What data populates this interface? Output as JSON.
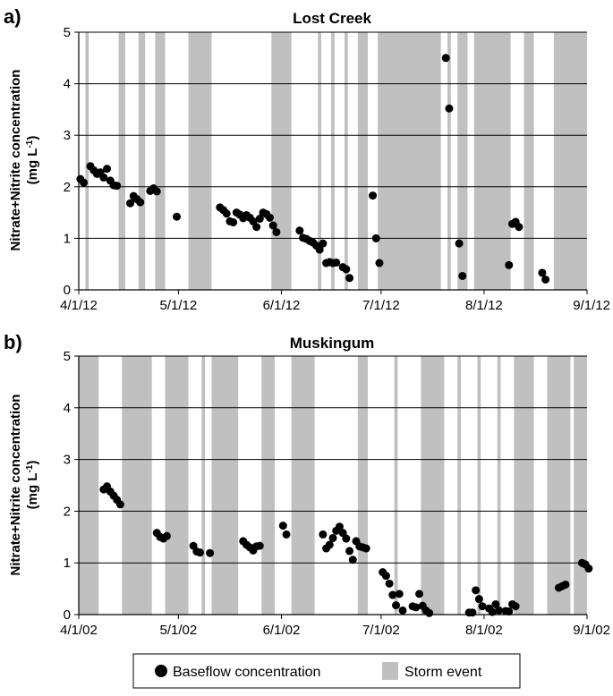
{
  "chart_data": [
    {
      "type": "scatter",
      "panel_label": "a)",
      "title": "Lost Creek",
      "ylabel_main": "Nitrate+Nitrite concentration",
      "ylabel_unit": "(mg L",
      "ylabel_exp": "-1",
      "ylabel_close": ")",
      "ylim": [
        0,
        5
      ],
      "yticks": [
        "0",
        "1",
        "2",
        "3",
        "4",
        "5"
      ],
      "xlim": [
        "2012-04-01",
        "2012-09-01"
      ],
      "xticks": [
        {
          "date": "2012-04-01",
          "label": "4/1/12"
        },
        {
          "date": "2012-05-01",
          "label": "5/1/12"
        },
        {
          "date": "2012-06-01",
          "label": "6/1/12"
        },
        {
          "date": "2012-07-01",
          "label": "7/1/12"
        },
        {
          "date": "2012-08-01",
          "label": "8/1/12"
        },
        {
          "date": "2012-09-01",
          "label": "9/1/12"
        }
      ],
      "grid": "horizontal",
      "storm_events": [
        [
          "2012-04-03",
          "2012-04-04"
        ],
        [
          "2012-04-13",
          "2012-04-15"
        ],
        [
          "2012-04-19",
          "2012-04-21"
        ],
        [
          "2012-04-24",
          "2012-04-27"
        ],
        [
          "2012-05-04",
          "2012-05-11"
        ],
        [
          "2012-05-29",
          "2012-06-04"
        ],
        [
          "2012-06-12",
          "2012-06-13"
        ],
        [
          "2012-06-16",
          "2012-06-17"
        ],
        [
          "2012-06-20",
          "2012-06-21"
        ],
        [
          "2012-06-24",
          "2012-06-27"
        ],
        [
          "2012-06-30",
          "2012-07-19"
        ],
        [
          "2012-07-21",
          "2012-07-22"
        ],
        [
          "2012-07-24",
          "2012-07-27"
        ],
        [
          "2012-07-29",
          "2012-08-09"
        ],
        [
          "2012-08-13",
          "2012-08-16"
        ],
        [
          "2012-08-22",
          "2012-09-01"
        ]
      ],
      "baseflow": [
        {
          "x": "2012-04-01",
          "y": 2.15
        },
        {
          "x": "2012-04-02",
          "y": 2.08
        },
        {
          "x": "2012-04-04",
          "y": 2.4
        },
        {
          "x": "2012-04-05",
          "y": 2.32
        },
        {
          "x": "2012-04-06",
          "y": 2.25
        },
        {
          "x": "2012-04-07",
          "y": 2.28
        },
        {
          "x": "2012-04-08",
          "y": 2.18
        },
        {
          "x": "2012-04-09",
          "y": 2.35
        },
        {
          "x": "2012-04-10",
          "y": 2.12
        },
        {
          "x": "2012-04-11",
          "y": 2.03
        },
        {
          "x": "2012-04-12",
          "y": 2.02
        },
        {
          "x": "2012-04-16",
          "y": 1.68
        },
        {
          "x": "2012-04-17",
          "y": 1.82
        },
        {
          "x": "2012-04-18",
          "y": 1.76
        },
        {
          "x": "2012-04-19",
          "y": 1.7
        },
        {
          "x": "2012-04-22",
          "y": 1.92
        },
        {
          "x": "2012-04-23",
          "y": 1.97
        },
        {
          "x": "2012-04-24",
          "y": 1.91
        },
        {
          "x": "2012-04-30",
          "y": 1.42
        },
        {
          "x": "2012-05-13",
          "y": 1.6
        },
        {
          "x": "2012-05-14",
          "y": 1.55
        },
        {
          "x": "2012-05-15",
          "y": 1.48
        },
        {
          "x": "2012-05-16",
          "y": 1.33
        },
        {
          "x": "2012-05-17",
          "y": 1.31
        },
        {
          "x": "2012-05-18",
          "y": 1.5
        },
        {
          "x": "2012-05-19",
          "y": 1.46
        },
        {
          "x": "2012-05-20",
          "y": 1.39
        },
        {
          "x": "2012-05-21",
          "y": 1.45
        },
        {
          "x": "2012-05-22",
          "y": 1.4
        },
        {
          "x": "2012-05-23",
          "y": 1.33
        },
        {
          "x": "2012-05-24",
          "y": 1.22
        },
        {
          "x": "2012-05-25",
          "y": 1.38
        },
        {
          "x": "2012-05-26",
          "y": 1.5
        },
        {
          "x": "2012-05-27",
          "y": 1.47
        },
        {
          "x": "2012-05-28",
          "y": 1.4
        },
        {
          "x": "2012-05-29",
          "y": 1.25
        },
        {
          "x": "2012-05-30",
          "y": 1.12
        },
        {
          "x": "2012-06-06",
          "y": 1.15
        },
        {
          "x": "2012-06-07",
          "y": 1.01
        },
        {
          "x": "2012-06-08",
          "y": 0.99
        },
        {
          "x": "2012-06-09",
          "y": 0.95
        },
        {
          "x": "2012-06-10",
          "y": 0.92
        },
        {
          "x": "2012-06-11",
          "y": 0.86
        },
        {
          "x": "2012-06-12",
          "y": 0.78
        },
        {
          "x": "2012-06-13",
          "y": 0.9
        },
        {
          "x": "2012-06-14",
          "y": 0.52
        },
        {
          "x": "2012-06-15",
          "y": 0.54
        },
        {
          "x": "2012-06-16",
          "y": 0.52
        },
        {
          "x": "2012-06-17",
          "y": 0.53
        },
        {
          "x": "2012-06-19",
          "y": 0.44
        },
        {
          "x": "2012-06-20",
          "y": 0.4
        },
        {
          "x": "2012-06-21",
          "y": 0.23
        },
        {
          "x": "2012-06-28",
          "y": 1.83
        },
        {
          "x": "2012-06-29",
          "y": 1.0
        },
        {
          "x": "2012-06-30",
          "y": 0.52
        },
        {
          "x": "2012-07-20",
          "y": 4.5
        },
        {
          "x": "2012-07-21",
          "y": 3.52
        },
        {
          "x": "2012-07-24",
          "y": 0.9
        },
        {
          "x": "2012-07-25",
          "y": 0.27
        },
        {
          "x": "2012-08-08",
          "y": 0.48
        },
        {
          "x": "2012-08-09",
          "y": 1.28
        },
        {
          "x": "2012-08-10",
          "y": 1.32
        },
        {
          "x": "2012-08-11",
          "y": 1.22
        },
        {
          "x": "2012-08-18",
          "y": 0.33
        },
        {
          "x": "2012-08-19",
          "y": 0.2
        }
      ]
    },
    {
      "type": "scatter",
      "panel_label": "b)",
      "title": "Muskingum",
      "ylabel_main": "Nitrate+Nitrite concentration",
      "ylabel_unit": "(mg L",
      "ylabel_exp": "-1",
      "ylabel_close": ")",
      "ylim": [
        0,
        5
      ],
      "yticks": [
        "0",
        "1",
        "2",
        "3",
        "4",
        "5"
      ],
      "xlim": [
        "2002-04-01",
        "2002-09-01"
      ],
      "xticks": [
        {
          "date": "2002-04-01",
          "label": "4/1/02"
        },
        {
          "date": "2002-05-01",
          "label": "5/1/02"
        },
        {
          "date": "2002-06-01",
          "label": "6/1/02"
        },
        {
          "date": "2002-07-01",
          "label": "7/1/02"
        },
        {
          "date": "2002-08-01",
          "label": "8/1/02"
        },
        {
          "date": "2002-09-01",
          "label": "9/1/02"
        }
      ],
      "grid": "horizontal",
      "storm_events": [
        [
          "2002-04-01",
          "2002-04-07"
        ],
        [
          "2002-04-14",
          "2002-04-23"
        ],
        [
          "2002-04-27",
          "2002-05-04"
        ],
        [
          "2002-05-08",
          "2002-05-09"
        ],
        [
          "2002-05-11",
          "2002-05-19"
        ],
        [
          "2002-05-26",
          "2002-05-30"
        ],
        [
          "2002-06-04",
          "2002-06-11"
        ],
        [
          "2002-06-24",
          "2002-06-27"
        ],
        [
          "2002-07-05",
          "2002-07-06"
        ],
        [
          "2002-07-13",
          "2002-07-20"
        ],
        [
          "2002-07-24",
          "2002-07-25"
        ],
        [
          "2002-07-30",
          "2002-07-31"
        ],
        [
          "2002-08-05",
          "2002-08-06"
        ],
        [
          "2002-08-10",
          "2002-08-16"
        ],
        [
          "2002-08-20",
          "2002-08-27"
        ],
        [
          "2002-08-28",
          "2002-09-01"
        ]
      ],
      "baseflow": [
        {
          "x": "2002-04-08",
          "y": 2.42
        },
        {
          "x": "2002-04-09",
          "y": 2.48
        },
        {
          "x": "2002-04-10",
          "y": 2.38
        },
        {
          "x": "2002-04-11",
          "y": 2.3
        },
        {
          "x": "2002-04-12",
          "y": 2.22
        },
        {
          "x": "2002-04-13",
          "y": 2.13
        },
        {
          "x": "2002-04-24",
          "y": 1.58
        },
        {
          "x": "2002-04-25",
          "y": 1.5
        },
        {
          "x": "2002-04-26",
          "y": 1.47
        },
        {
          "x": "2002-04-27",
          "y": 1.52
        },
        {
          "x": "2002-05-05",
          "y": 1.33
        },
        {
          "x": "2002-05-06",
          "y": 1.22
        },
        {
          "x": "2002-05-07",
          "y": 1.2
        },
        {
          "x": "2002-05-10",
          "y": 1.19
        },
        {
          "x": "2002-05-20",
          "y": 1.42
        },
        {
          "x": "2002-05-21",
          "y": 1.35
        },
        {
          "x": "2002-05-22",
          "y": 1.3
        },
        {
          "x": "2002-05-23",
          "y": 1.24
        },
        {
          "x": "2002-05-24",
          "y": 1.32
        },
        {
          "x": "2002-05-25",
          "y": 1.33
        },
        {
          "x": "2002-06-01",
          "y": 1.72
        },
        {
          "x": "2002-06-02",
          "y": 1.55
        },
        {
          "x": "2002-06-13",
          "y": 1.55
        },
        {
          "x": "2002-06-14",
          "y": 1.28
        },
        {
          "x": "2002-06-15",
          "y": 1.35
        },
        {
          "x": "2002-06-16",
          "y": 1.48
        },
        {
          "x": "2002-06-17",
          "y": 1.62
        },
        {
          "x": "2002-06-18",
          "y": 1.7
        },
        {
          "x": "2002-06-19",
          "y": 1.58
        },
        {
          "x": "2002-06-20",
          "y": 1.47
        },
        {
          "x": "2002-06-21",
          "y": 1.23
        },
        {
          "x": "2002-06-22",
          "y": 1.06
        },
        {
          "x": "2002-06-23",
          "y": 1.42
        },
        {
          "x": "2002-06-24",
          "y": 1.32
        },
        {
          "x": "2002-06-25",
          "y": 1.3
        },
        {
          "x": "2002-06-26",
          "y": 1.28
        },
        {
          "x": "2002-07-01",
          "y": 0.82
        },
        {
          "x": "2002-07-02",
          "y": 0.75
        },
        {
          "x": "2002-07-03",
          "y": 0.6
        },
        {
          "x": "2002-07-04",
          "y": 0.38
        },
        {
          "x": "2002-07-05",
          "y": 0.18
        },
        {
          "x": "2002-07-06",
          "y": 0.4
        },
        {
          "x": "2002-07-07",
          "y": 0.08
        },
        {
          "x": "2002-07-10",
          "y": 0.16
        },
        {
          "x": "2002-07-11",
          "y": 0.14
        },
        {
          "x": "2002-07-12",
          "y": 0.4
        },
        {
          "x": "2002-07-13",
          "y": 0.17
        },
        {
          "x": "2002-07-14",
          "y": 0.08
        },
        {
          "x": "2002-07-15",
          "y": 0.03
        },
        {
          "x": "2002-07-27",
          "y": 0.04
        },
        {
          "x": "2002-07-28",
          "y": 0.04
        },
        {
          "x": "2002-07-29",
          "y": 0.47
        },
        {
          "x": "2002-07-30",
          "y": 0.3
        },
        {
          "x": "2002-07-31",
          "y": 0.16
        },
        {
          "x": "2002-08-02",
          "y": 0.12
        },
        {
          "x": "2002-08-03",
          "y": 0.05
        },
        {
          "x": "2002-08-04",
          "y": 0.2
        },
        {
          "x": "2002-08-05",
          "y": 0.08
        },
        {
          "x": "2002-08-07",
          "y": 0.07
        },
        {
          "x": "2002-08-08",
          "y": 0.06
        },
        {
          "x": "2002-08-09",
          "y": 0.2
        },
        {
          "x": "2002-08-10",
          "y": 0.16
        },
        {
          "x": "2002-08-23",
          "y": 0.52
        },
        {
          "x": "2002-08-24",
          "y": 0.55
        },
        {
          "x": "2002-08-25",
          "y": 0.58
        },
        {
          "x": "2002-08-30",
          "y": 1.0
        },
        {
          "x": "2002-08-31",
          "y": 0.97
        },
        {
          "x": "2002-09-01",
          "y": 0.89
        }
      ]
    }
  ],
  "legend": {
    "baseflow_label": "Baseflow concentration",
    "storm_label": "Storm event",
    "baseflow_color": "#000000",
    "storm_color": "#c0c0c0"
  }
}
